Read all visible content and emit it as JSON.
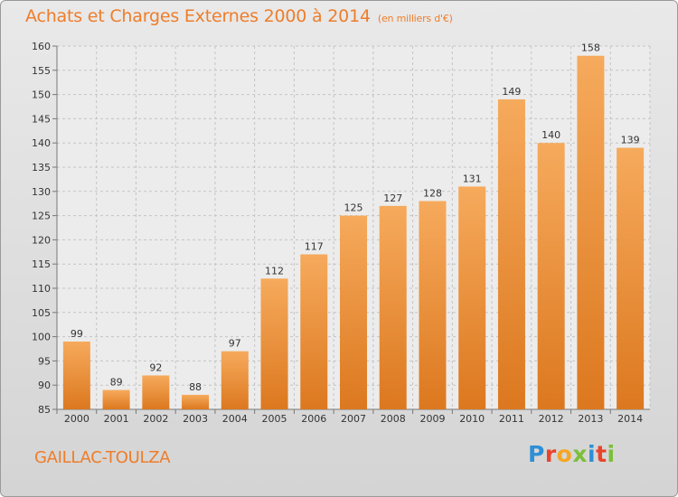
{
  "title": "Achats et Charges Externes 2000 à 2014",
  "subtitle": "(en milliers d'€)",
  "commune": "GAILLAC-TOULZA",
  "logo": "Proxiti",
  "colors": {
    "accent": "#ee7d2a",
    "bar_light": "#f5a55a",
    "bar_dark": "#dd7a22"
  },
  "chart_data": {
    "type": "bar",
    "title": "Achats et Charges Externes 2000 à 2014",
    "subtitle": "(en milliers d'€)",
    "xlabel": "",
    "ylabel": "",
    "categories": [
      "2000",
      "2001",
      "2002",
      "2003",
      "2004",
      "2005",
      "2006",
      "2007",
      "2008",
      "2009",
      "2010",
      "2011",
      "2012",
      "2013",
      "2014"
    ],
    "values": [
      99,
      89,
      92,
      88,
      97,
      112,
      117,
      125,
      127,
      128,
      131,
      149,
      140,
      158,
      139
    ],
    "ylim": [
      85,
      160
    ],
    "yticks": [
      85,
      90,
      95,
      100,
      105,
      110,
      115,
      120,
      125,
      130,
      135,
      140,
      145,
      150,
      155,
      160
    ],
    "grid": true,
    "data_labels": true
  }
}
